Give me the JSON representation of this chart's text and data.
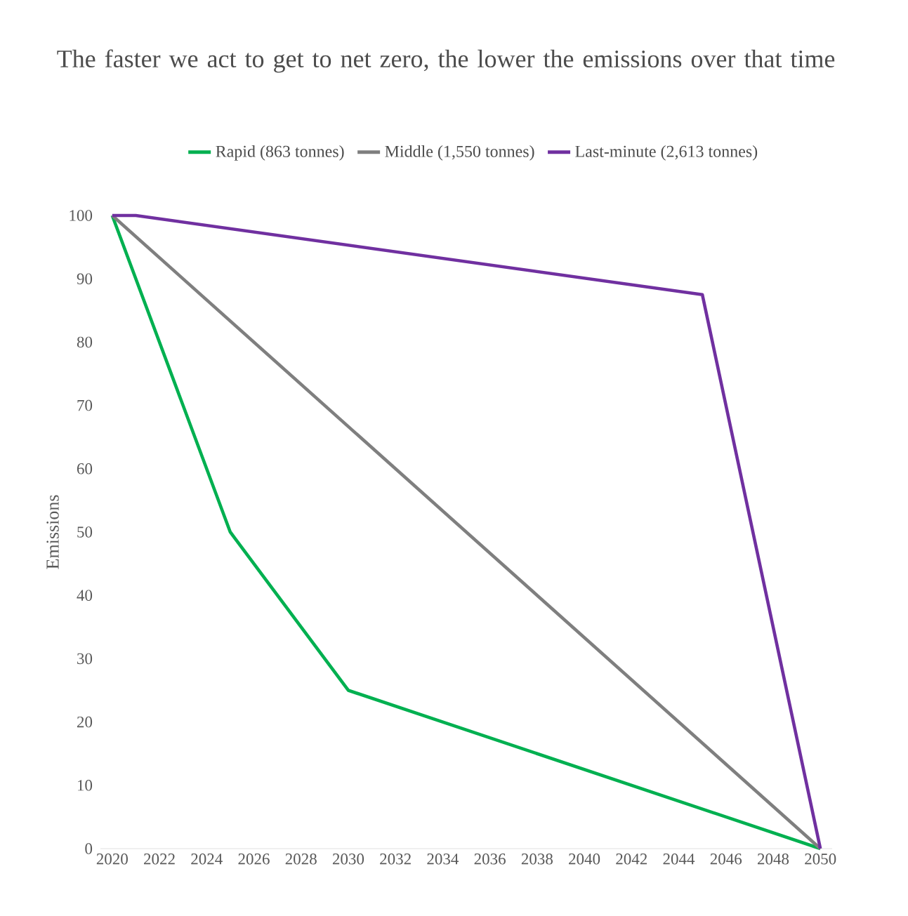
{
  "chart_data": {
    "type": "line",
    "title": "The faster we act to get to net zero, the lower the emissions over that time",
    "ylabel": "Emissions",
    "series": [
      {
        "name": "Rapid (863 tonnes)",
        "color": "#00b050",
        "x": [
          2020,
          2025,
          2030,
          2050
        ],
        "values": [
          100,
          50,
          25,
          0
        ]
      },
      {
        "name": "Middle (1,550 tonnes)",
        "color": "#7f7f7f",
        "x": [
          2020,
          2050
        ],
        "values": [
          100,
          0
        ]
      },
      {
        "name": "Last-minute (2,613 tonnes)",
        "color": "#7030a0",
        "x": [
          2020,
          2021,
          2045,
          2050
        ],
        "values": [
          100,
          100,
          87.5,
          0
        ]
      }
    ],
    "xlim": [
      2019.5,
      2050.5
    ],
    "xticks": [
      2020,
      2022,
      2024,
      2026,
      2028,
      2030,
      2032,
      2034,
      2036,
      2038,
      2040,
      2042,
      2044,
      2046,
      2048,
      2050
    ],
    "ylim": [
      0,
      100
    ],
    "yticks": [
      0,
      10,
      20,
      30,
      40,
      50,
      60,
      70,
      80,
      90,
      100
    ],
    "grid": false,
    "legend": "top",
    "marker": "none",
    "line_style": "solid"
  }
}
